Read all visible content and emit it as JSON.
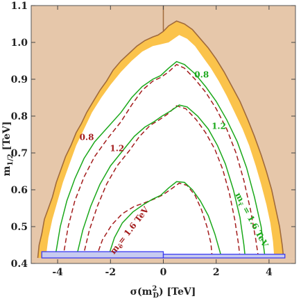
{
  "chart_data": {
    "type": "contour",
    "xlabel_main": "σ(m",
    "xlabel_sup": "2",
    "xlabel_sub": "D",
    "xlabel_tail": ") [TeV]",
    "ylabel_main": "m",
    "ylabel_sub": "1/2",
    "ylabel_tail": " [TeV]",
    "xlim": [
      -5,
      5
    ],
    "ylim": [
      0.4,
      1.1
    ],
    "x_ticks": [
      -4,
      -2,
      0,
      2,
      4
    ],
    "x_tick_labels": [
      "-4",
      "-2",
      "0",
      "2",
      "4"
    ],
    "y_ticks": [
      0.4,
      0.5,
      0.6,
      0.7,
      0.8,
      0.9,
      1.0,
      1.1
    ],
    "y_tick_labels": [
      "0.4",
      "0.5",
      "0.6",
      "0.7",
      "0.8",
      "0.9",
      "1.0",
      "1.1"
    ],
    "colors": {
      "excluded": "#e6c7aa",
      "band": "#fbc34b",
      "boundary": "#a06a3c",
      "green": "#1aa81a",
      "red": "#a31c1c",
      "blue": "#3a3af0",
      "blue_fill": "#c7cbf0"
    },
    "regions": {
      "boundary_outer": [
        [
          -4.75,
          0.415
        ],
        [
          -4.7,
          0.45
        ],
        [
          -4.6,
          0.48
        ],
        [
          -4.5,
          0.52
        ],
        [
          -4.35,
          0.55
        ],
        [
          -4.2,
          0.58
        ],
        [
          -4.05,
          0.62
        ],
        [
          -3.9,
          0.65
        ],
        [
          -3.7,
          0.69
        ],
        [
          -3.5,
          0.72
        ],
        [
          -3.3,
          0.755
        ],
        [
          -3.1,
          0.78
        ],
        [
          -2.9,
          0.81
        ],
        [
          -2.65,
          0.84
        ],
        [
          -2.4,
          0.87
        ],
        [
          -2.15,
          0.895
        ],
        [
          -1.9,
          0.925
        ],
        [
          -1.6,
          0.95
        ],
        [
          -1.3,
          0.97
        ],
        [
          -1.0,
          0.99
        ],
        [
          -0.7,
          1.005
        ],
        [
          -0.4,
          1.015
        ],
        [
          -0.2,
          1.02
        ],
        [
          0.0,
          1.03
        ],
        [
          0.2,
          1.045
        ],
        [
          0.5,
          1.058
        ],
        [
          0.8,
          1.05
        ],
        [
          1.1,
          1.035
        ],
        [
          1.4,
          1.01
        ],
        [
          1.7,
          0.985
        ],
        [
          2.0,
          0.955
        ],
        [
          2.3,
          0.92
        ],
        [
          2.6,
          0.88
        ],
        [
          2.9,
          0.84
        ],
        [
          3.2,
          0.79
        ],
        [
          3.45,
          0.745
        ],
        [
          3.7,
          0.695
        ],
        [
          3.9,
          0.65
        ],
        [
          4.1,
          0.6
        ],
        [
          4.25,
          0.55
        ],
        [
          4.4,
          0.5
        ],
        [
          4.5,
          0.45
        ],
        [
          4.55,
          0.415
        ]
      ],
      "band_inner": [
        [
          -4.45,
          0.415
        ],
        [
          -4.35,
          0.47
        ],
        [
          -4.2,
          0.52
        ],
        [
          -4.0,
          0.57
        ],
        [
          -3.8,
          0.62
        ],
        [
          -3.55,
          0.67
        ],
        [
          -3.3,
          0.72
        ],
        [
          -3.0,
          0.765
        ],
        [
          -2.7,
          0.81
        ],
        [
          -2.35,
          0.85
        ],
        [
          -2.0,
          0.885
        ],
        [
          -1.6,
          0.92
        ],
        [
          -1.2,
          0.95
        ],
        [
          -0.8,
          0.975
        ],
        [
          -0.4,
          0.99
        ],
        [
          -0.1,
          0.995
        ],
        [
          0.2,
          1.0
        ],
        [
          0.6,
          1.02
        ],
        [
          0.9,
          1.01
        ],
        [
          1.2,
          0.99
        ],
        [
          1.5,
          0.96
        ],
        [
          1.8,
          0.93
        ],
        [
          2.1,
          0.895
        ],
        [
          2.4,
          0.855
        ],
        [
          2.7,
          0.81
        ],
        [
          3.0,
          0.765
        ],
        [
          3.25,
          0.72
        ],
        [
          3.5,
          0.665
        ],
        [
          3.7,
          0.615
        ],
        [
          3.9,
          0.56
        ],
        [
          4.05,
          0.51
        ],
        [
          4.15,
          0.46
        ],
        [
          4.2,
          0.415
        ]
      ],
      "vertical_line_x": 0,
      "vertical_line_y": [
        1.03,
        1.1
      ],
      "blue_box_left": [
        -4.6,
        0.415,
        0,
        0.432
      ],
      "blue_box_right": [
        0,
        0.415,
        4.6,
        0.425
      ]
    },
    "contours": [
      {
        "name": "0.8",
        "green": [
          [
            -4.1,
            0.415
          ],
          [
            -3.9,
            0.5
          ],
          [
            -3.65,
            0.57
          ],
          [
            -3.35,
            0.63
          ],
          [
            -3.0,
            0.685
          ],
          [
            -2.6,
            0.73
          ],
          [
            -2.1,
            0.77
          ],
          [
            -1.6,
            0.81
          ],
          [
            -1.2,
            0.85
          ],
          [
            -0.8,
            0.88
          ],
          [
            -0.4,
            0.9
          ],
          [
            -0.1,
            0.91
          ],
          [
            0.2,
            0.93
          ],
          [
            0.5,
            0.948
          ],
          [
            0.8,
            0.94
          ],
          [
            1.2,
            0.915
          ],
          [
            1.6,
            0.88
          ],
          [
            2.0,
            0.84
          ],
          [
            2.4,
            0.79
          ],
          [
            2.8,
            0.73
          ],
          [
            3.15,
            0.66
          ],
          [
            3.45,
            0.58
          ],
          [
            3.7,
            0.5
          ],
          [
            3.85,
            0.415
          ]
        ],
        "red": [
          [
            -3.8,
            0.415
          ],
          [
            -3.6,
            0.5
          ],
          [
            -3.35,
            0.57
          ],
          [
            -3.0,
            0.635
          ],
          [
            -2.6,
            0.69
          ],
          [
            -2.1,
            0.74
          ],
          [
            -1.6,
            0.785
          ],
          [
            -1.2,
            0.83
          ],
          [
            -0.8,
            0.87
          ],
          [
            -0.4,
            0.895
          ],
          [
            -0.1,
            0.905
          ],
          [
            0.2,
            0.92
          ],
          [
            0.5,
            0.94
          ],
          [
            0.8,
            0.93
          ],
          [
            1.2,
            0.9
          ],
          [
            1.6,
            0.865
          ],
          [
            2.0,
            0.82
          ],
          [
            2.4,
            0.765
          ],
          [
            2.75,
            0.7
          ],
          [
            3.05,
            0.625
          ],
          [
            3.3,
            0.545
          ],
          [
            3.5,
            0.465
          ],
          [
            3.6,
            0.415
          ]
        ],
        "green_label": "0.8",
        "green_label_at": [
          1.45,
          0.905
        ],
        "red_label": "0.8",
        "red_label_at": [
          -2.9,
          0.735
        ]
      },
      {
        "name": "1.2",
        "green": [
          [
            -3.3,
            0.415
          ],
          [
            -3.05,
            0.49
          ],
          [
            -2.75,
            0.555
          ],
          [
            -2.4,
            0.615
          ],
          [
            -2.0,
            0.665
          ],
          [
            -1.55,
            0.705
          ],
          [
            -1.1,
            0.745
          ],
          [
            -0.7,
            0.77
          ],
          [
            -0.35,
            0.785
          ],
          [
            -0.05,
            0.8
          ],
          [
            0.3,
            0.815
          ],
          [
            0.6,
            0.83
          ],
          [
            0.9,
            0.825
          ],
          [
            1.3,
            0.8
          ],
          [
            1.7,
            0.765
          ],
          [
            2.05,
            0.72
          ],
          [
            2.35,
            0.67
          ],
          [
            2.65,
            0.6
          ],
          [
            2.9,
            0.525
          ],
          [
            3.05,
            0.45
          ],
          [
            3.1,
            0.415
          ]
        ],
        "red": [
          [
            -3.05,
            0.415
          ],
          [
            -2.8,
            0.49
          ],
          [
            -2.5,
            0.555
          ],
          [
            -2.15,
            0.615
          ],
          [
            -1.75,
            0.665
          ],
          [
            -1.3,
            0.705
          ],
          [
            -0.9,
            0.745
          ],
          [
            -0.5,
            0.775
          ],
          [
            -0.15,
            0.79
          ],
          [
            0.15,
            0.805
          ],
          [
            0.5,
            0.828
          ],
          [
            0.85,
            0.82
          ],
          [
            1.25,
            0.79
          ],
          [
            1.6,
            0.755
          ],
          [
            1.95,
            0.71
          ],
          [
            2.25,
            0.655
          ],
          [
            2.5,
            0.59
          ],
          [
            2.7,
            0.52
          ],
          [
            2.85,
            0.45
          ],
          [
            2.9,
            0.415
          ]
        ],
        "green_label": "1.2",
        "green_label_at": [
          2.1,
          0.765
        ],
        "red_label": "1.2",
        "red_label_at": [
          -1.75,
          0.705
        ]
      },
      {
        "name": "1.6",
        "green": [
          [
            -2.1,
            0.415
          ],
          [
            -1.85,
            0.47
          ],
          [
            -1.55,
            0.51
          ],
          [
            -1.15,
            0.54
          ],
          [
            -0.75,
            0.56
          ],
          [
            -0.4,
            0.575
          ],
          [
            -0.1,
            0.585
          ],
          [
            0.2,
            0.605
          ],
          [
            0.5,
            0.622
          ],
          [
            0.8,
            0.62
          ],
          [
            1.1,
            0.6
          ],
          [
            1.4,
            0.57
          ],
          [
            1.7,
            0.53
          ],
          [
            1.95,
            0.48
          ],
          [
            2.15,
            0.43
          ],
          [
            2.2,
            0.415
          ]
        ],
        "red": [
          [
            -2.55,
            0.415
          ],
          [
            -2.3,
            0.465
          ],
          [
            -1.95,
            0.505
          ],
          [
            -1.55,
            0.535
          ],
          [
            -1.1,
            0.555
          ],
          [
            -0.7,
            0.565
          ],
          [
            -0.35,
            0.575
          ],
          [
            -0.05,
            0.585
          ],
          [
            0.3,
            0.602
          ],
          [
            0.6,
            0.618
          ],
          [
            0.9,
            0.612
          ],
          [
            1.2,
            0.585
          ],
          [
            1.45,
            0.545
          ],
          [
            1.65,
            0.5
          ],
          [
            1.8,
            0.455
          ],
          [
            1.85,
            0.415
          ]
        ],
        "green_label": "m_τ̃ = 1.6 TeV",
        "green_label_text": "m",
        "green_label_sub": "τ̃",
        "green_label_tail": " = 1.6 TeV",
        "green_label_at": [
          3.25,
          0.515
        ],
        "red_label_text": "m",
        "red_label_sub": "ẽ",
        "red_label_tail": "= 1.6 TeV",
        "red_label_at": [
          -1.2,
          0.485
        ]
      }
    ]
  }
}
